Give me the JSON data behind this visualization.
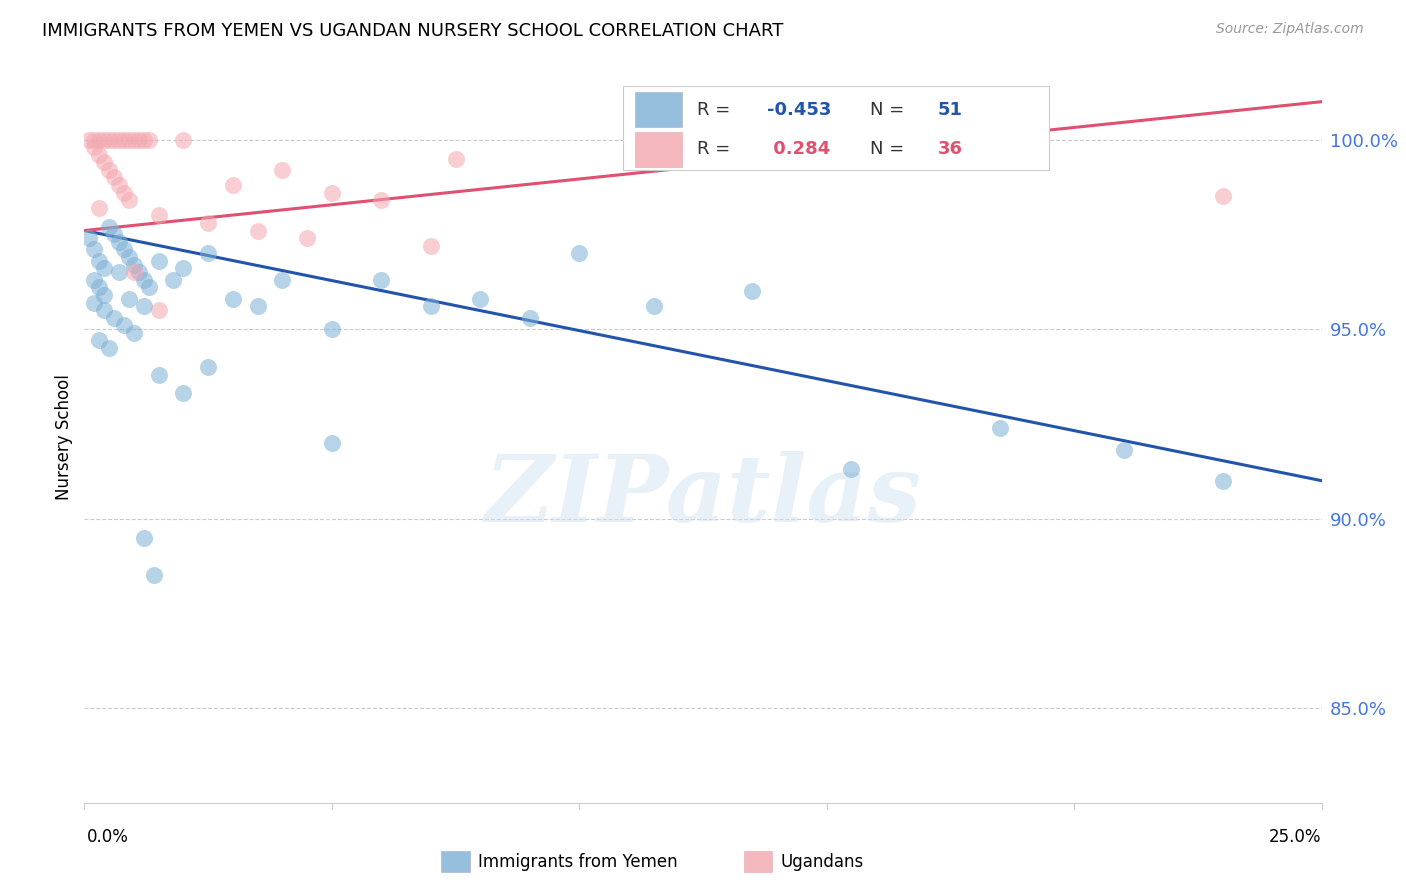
{
  "title": "IMMIGRANTS FROM YEMEN VS UGANDAN NURSERY SCHOOL CORRELATION CHART",
  "source": "Source: ZipAtlas.com",
  "ylabel": "Nursery School",
  "ytick_labels": [
    "85.0%",
    "90.0%",
    "95.0%",
    "100.0%"
  ],
  "ytick_values": [
    0.85,
    0.9,
    0.95,
    1.0
  ],
  "xlim": [
    0.0,
    0.25
  ],
  "ylim": [
    0.825,
    1.018
  ],
  "legend_blue_r": "-0.453",
  "legend_blue_n": "51",
  "legend_pink_r": "0.284",
  "legend_pink_n": "36",
  "legend_label_blue": "Immigrants from Yemen",
  "legend_label_pink": "Ugandans",
  "blue_color": "#7BAFD4",
  "pink_color": "#F4A7B0",
  "trendline_blue": "#2255AA",
  "trendline_pink": "#E05070",
  "watermark": "ZIPatlas",
  "blue_points": [
    [
      0.001,
      0.974
    ],
    [
      0.002,
      0.971
    ],
    [
      0.003,
      0.968
    ],
    [
      0.004,
      0.966
    ],
    [
      0.002,
      0.963
    ],
    [
      0.003,
      0.961
    ],
    [
      0.004,
      0.959
    ],
    [
      0.005,
      0.977
    ],
    [
      0.006,
      0.975
    ],
    [
      0.007,
      0.973
    ],
    [
      0.008,
      0.971
    ],
    [
      0.009,
      0.969
    ],
    [
      0.01,
      0.967
    ],
    [
      0.011,
      0.965
    ],
    [
      0.012,
      0.963
    ],
    [
      0.013,
      0.961
    ],
    [
      0.002,
      0.957
    ],
    [
      0.004,
      0.955
    ],
    [
      0.006,
      0.953
    ],
    [
      0.008,
      0.951
    ],
    [
      0.01,
      0.949
    ],
    [
      0.003,
      0.947
    ],
    [
      0.005,
      0.945
    ],
    [
      0.007,
      0.965
    ],
    [
      0.009,
      0.958
    ],
    [
      0.012,
      0.956
    ],
    [
      0.015,
      0.968
    ],
    [
      0.018,
      0.963
    ],
    [
      0.02,
      0.966
    ],
    [
      0.025,
      0.97
    ],
    [
      0.03,
      0.958
    ],
    [
      0.035,
      0.956
    ],
    [
      0.04,
      0.963
    ],
    [
      0.05,
      0.95
    ],
    [
      0.06,
      0.963
    ],
    [
      0.07,
      0.956
    ],
    [
      0.08,
      0.958
    ],
    [
      0.09,
      0.953
    ],
    [
      0.1,
      0.97
    ],
    [
      0.115,
      0.956
    ],
    [
      0.135,
      0.96
    ],
    [
      0.015,
      0.938
    ],
    [
      0.02,
      0.933
    ],
    [
      0.025,
      0.94
    ],
    [
      0.155,
      0.913
    ],
    [
      0.185,
      0.924
    ],
    [
      0.21,
      0.918
    ],
    [
      0.23,
      0.91
    ],
    [
      0.05,
      0.92
    ],
    [
      0.012,
      0.895
    ],
    [
      0.014,
      0.885
    ]
  ],
  "pink_points": [
    [
      0.001,
      1.0
    ],
    [
      0.002,
      1.0
    ],
    [
      0.003,
      1.0
    ],
    [
      0.004,
      1.0
    ],
    [
      0.005,
      1.0
    ],
    [
      0.006,
      1.0
    ],
    [
      0.007,
      1.0
    ],
    [
      0.008,
      1.0
    ],
    [
      0.009,
      1.0
    ],
    [
      0.01,
      1.0
    ],
    [
      0.011,
      1.0
    ],
    [
      0.012,
      1.0
    ],
    [
      0.013,
      1.0
    ],
    [
      0.02,
      1.0
    ],
    [
      0.002,
      0.998
    ],
    [
      0.003,
      0.996
    ],
    [
      0.004,
      0.994
    ],
    [
      0.005,
      0.992
    ],
    [
      0.006,
      0.99
    ],
    [
      0.007,
      0.988
    ],
    [
      0.008,
      0.986
    ],
    [
      0.009,
      0.984
    ],
    [
      0.03,
      0.988
    ],
    [
      0.04,
      0.992
    ],
    [
      0.05,
      0.986
    ],
    [
      0.06,
      0.984
    ],
    [
      0.003,
      0.982
    ],
    [
      0.015,
      0.98
    ],
    [
      0.025,
      0.978
    ],
    [
      0.035,
      0.976
    ],
    [
      0.045,
      0.974
    ],
    [
      0.01,
      0.965
    ],
    [
      0.07,
      0.972
    ],
    [
      0.015,
      0.955
    ],
    [
      0.23,
      0.985
    ],
    [
      0.075,
      0.995
    ]
  ],
  "blue_trendline_x": [
    0.0,
    0.25
  ],
  "blue_trendline_y": [
    0.976,
    0.91
  ],
  "pink_trendline_x": [
    0.0,
    0.25
  ],
  "pink_trendline_y": [
    0.976,
    1.01
  ]
}
